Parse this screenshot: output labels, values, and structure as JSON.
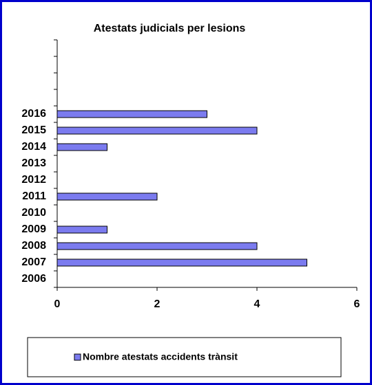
{
  "chart_data": {
    "type": "bar",
    "orientation": "horizontal",
    "title": "Atestats judicials per lesions",
    "categories": [
      "2006",
      "2007",
      "2008",
      "2009",
      "2010",
      "2011",
      "2012",
      "2013",
      "2014",
      "2015",
      "2016",
      null,
      null,
      null,
      null
    ],
    "series": [
      {
        "name": "Nombre atestats accidents trànsit",
        "color": "#7b7bef",
        "values": [
          null,
          5,
          4,
          1,
          null,
          2,
          null,
          null,
          1,
          4,
          3,
          null,
          null,
          null,
          null
        ]
      }
    ],
    "xlim": [
      0,
      6
    ],
    "xticks": [
      0,
      2,
      4,
      6
    ],
    "grid": false,
    "legend": "bottom"
  }
}
